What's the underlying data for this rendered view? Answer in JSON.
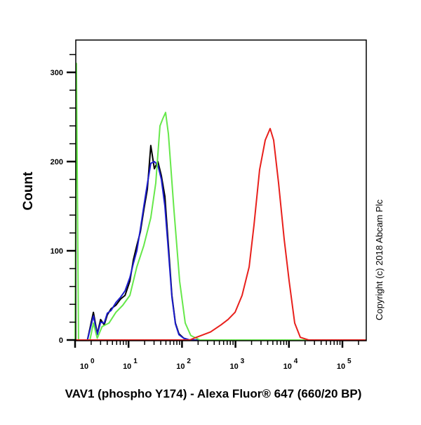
{
  "chart_data": {
    "type": "line",
    "title": "",
    "xlabel": "VAV1 (phospho Y174) - Alexa Fluor® 647 (660/20 BP)",
    "ylabel": "Count",
    "x_scale": "log",
    "xlim": [
      1,
      280000
    ],
    "ylim": [
      0,
      336
    ],
    "x_ticks": [
      {
        "value": 1,
        "base": "10",
        "exp": "0"
      },
      {
        "value": 10,
        "base": "10",
        "exp": "1"
      },
      {
        "value": 100,
        "base": "10",
        "exp": "2"
      },
      {
        "value": 1000,
        "base": "10",
        "exp": "3"
      },
      {
        "value": 10000,
        "base": "10",
        "exp": "4"
      },
      {
        "value": 100000,
        "base": "10",
        "exp": "5"
      }
    ],
    "y_ticks": [
      0,
      100,
      200,
      300
    ],
    "grid": false,
    "legend": "none",
    "annotation": "Copyright (c) 2018 Abcam Plc",
    "series": [
      {
        "color": "#000000",
        "points": [
          [
            1,
            0
          ],
          [
            1.7,
            0
          ],
          [
            2.2,
            31
          ],
          [
            2.6,
            7
          ],
          [
            3.0,
            23
          ],
          [
            3.5,
            17
          ],
          [
            4.0,
            28
          ],
          [
            4.7,
            35
          ],
          [
            5.8,
            39
          ],
          [
            7.1,
            46
          ],
          [
            8.6,
            50
          ],
          [
            10.6,
            66
          ],
          [
            12.3,
            90
          ],
          [
            14.3,
            106
          ],
          [
            16.6,
            121
          ],
          [
            19.3,
            146
          ],
          [
            22.5,
            169
          ],
          [
            26.1,
            218
          ],
          [
            30.4,
            192
          ],
          [
            35.4,
            200
          ],
          [
            41.1,
            184
          ],
          [
            47.9,
            161
          ],
          [
            55.6,
            106
          ],
          [
            64.7,
            50
          ],
          [
            75.3,
            19
          ],
          [
            87.5,
            7
          ],
          [
            108,
            2
          ],
          [
            138,
            0
          ],
          [
            280000,
            0
          ]
        ]
      },
      {
        "color": "#1c1ccc",
        "points": [
          [
            1,
            0
          ],
          [
            1.7,
            0
          ],
          [
            2.2,
            27
          ],
          [
            2.6,
            6
          ],
          [
            3.0,
            20
          ],
          [
            3.5,
            19
          ],
          [
            4.0,
            30
          ],
          [
            4.7,
            33
          ],
          [
            5.8,
            42
          ],
          [
            7.1,
            48
          ],
          [
            8.6,
            55
          ],
          [
            10.6,
            70
          ],
          [
            12.3,
            86
          ],
          [
            14.3,
            100
          ],
          [
            16.6,
            124
          ],
          [
            19.3,
            150
          ],
          [
            22.5,
            175
          ],
          [
            26.1,
            198
          ],
          [
            30.4,
            200
          ],
          [
            35.4,
            196
          ],
          [
            41.1,
            180
          ],
          [
            47.9,
            150
          ],
          [
            55.6,
            100
          ],
          [
            64.7,
            48
          ],
          [
            75.3,
            18
          ],
          [
            87.5,
            6
          ],
          [
            108,
            2
          ],
          [
            138,
            0
          ],
          [
            280000,
            0
          ]
        ]
      },
      {
        "color": "#66e84a",
        "points": [
          [
            1.0,
            0
          ],
          [
            1.06,
            310
          ],
          [
            1.16,
            0
          ],
          [
            1.9,
            0
          ],
          [
            2.2,
            19
          ],
          [
            2.6,
            2
          ],
          [
            3.2,
            15
          ],
          [
            4.3,
            19
          ],
          [
            5.8,
            31
          ],
          [
            7.8,
            39
          ],
          [
            10.6,
            50
          ],
          [
            14.3,
            82
          ],
          [
            19.3,
            106
          ],
          [
            26.1,
            137
          ],
          [
            32.3,
            176
          ],
          [
            38.7,
            240
          ],
          [
            43.7,
            248
          ],
          [
            49.3,
            255
          ],
          [
            55.6,
            231
          ],
          [
            70.8,
            145
          ],
          [
            90.2,
            66
          ],
          [
            115,
            19
          ],
          [
            146,
            5
          ],
          [
            217,
            0
          ],
          [
            280000,
            0
          ]
        ]
      },
      {
        "color": "#e8201c",
        "points": [
          [
            1,
            0
          ],
          [
            138,
            0
          ],
          [
            186,
            3
          ],
          [
            341,
            9
          ],
          [
            537,
            17
          ],
          [
            726,
            23
          ],
          [
            982,
            31
          ],
          [
            1330,
            50
          ],
          [
            1800,
            82
          ],
          [
            2220,
            129
          ],
          [
            2830,
            191
          ],
          [
            3600,
            224
          ],
          [
            4450,
            237
          ],
          [
            5170,
            224
          ],
          [
            6400,
            176
          ],
          [
            8150,
            113
          ],
          [
            10100,
            66
          ],
          [
            12800,
            19
          ],
          [
            16300,
            3
          ],
          [
            23400,
            0
          ],
          [
            280000,
            0
          ]
        ]
      }
    ]
  }
}
